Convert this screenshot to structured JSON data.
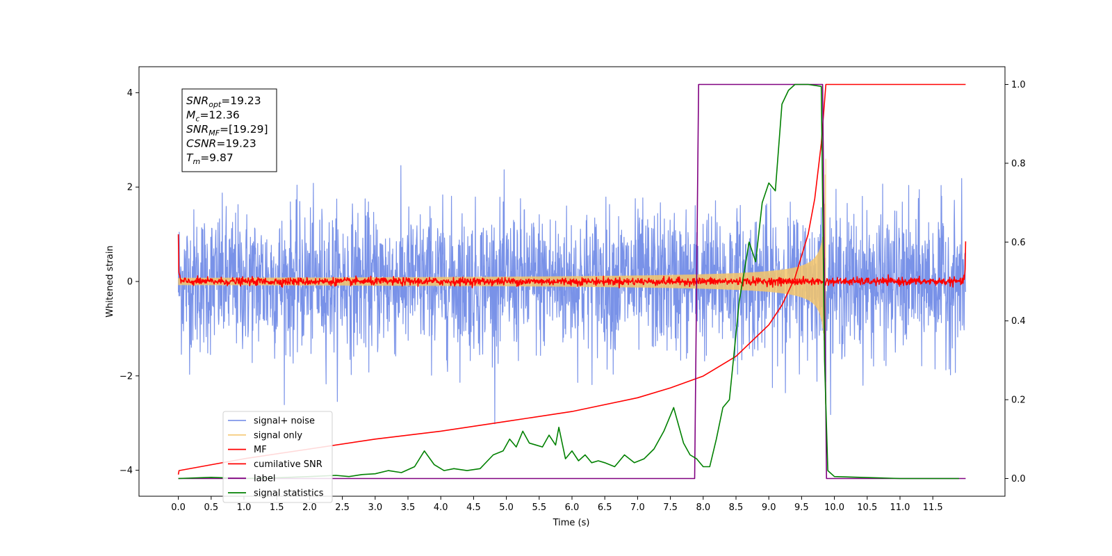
{
  "chart_data": {
    "type": "line",
    "xlabel": "Time (s)",
    "ylabel": "Whitened strain",
    "ylabel_right": "",
    "xlim": [
      -0.6,
      12.6
    ],
    "ylim": [
      -4.55,
      4.55
    ],
    "ylim_right": [
      -0.045,
      1.045
    ],
    "x_ticks": [
      0.0,
      0.5,
      1.0,
      1.5,
      2.0,
      2.5,
      3.0,
      3.5,
      4.0,
      4.5,
      5.0,
      5.5,
      6.0,
      6.5,
      7.0,
      7.5,
      8.0,
      8.5,
      9.0,
      9.5,
      10.0,
      10.5,
      11.0,
      11.5
    ],
    "x_tick_labels": [
      "0.0",
      "0.5",
      "1.0",
      "1.5",
      "2.0",
      "2.5",
      "3.0",
      "3.5",
      "4.0",
      "4.5",
      "5.0",
      "5.5",
      "6.0",
      "6.5",
      "7.0",
      "7.5",
      "8.0",
      "8.5",
      "9.0",
      "9.5",
      "10.0",
      "10.5",
      "11.0",
      "11.5"
    ],
    "y_ticks_left": [
      -4,
      -2,
      0,
      2,
      4
    ],
    "y_tick_labels_left": [
      "−4",
      "−2",
      "0",
      "2",
      "4"
    ],
    "y_ticks_right": [
      0.0,
      0.2,
      0.4,
      0.6,
      0.8,
      1.0
    ],
    "y_tick_labels_right": [
      "0.0",
      "0.2",
      "0.4",
      "0.6",
      "0.8",
      "1.0"
    ],
    "grid": false,
    "legend_position": "lower-left",
    "series": [
      {
        "name": "signal+ noise",
        "color": "#6a86e6",
        "axis": "left",
        "style": "noise",
        "amplitude_std": 0.75,
        "x_start": 0.0,
        "x_end": 12.0
      },
      {
        "name": "signal only",
        "color": "#f5c56a",
        "axis": "left",
        "style": "chirp",
        "x_start": 0.0,
        "x_end": 9.87,
        "peak": 2.6
      },
      {
        "name": "MF",
        "color": "#ff0000",
        "axis": "left",
        "style": "matched-filter",
        "x_start": 0.0,
        "x_end": 12.0,
        "std": 0.04
      },
      {
        "name": "cumilative SNR",
        "color": "#ff0000",
        "axis": "right",
        "x": [
          0.0,
          0.01,
          1.0,
          2.0,
          3.0,
          4.0,
          5.0,
          6.0,
          7.0,
          7.5,
          8.0,
          8.5,
          9.0,
          9.2,
          9.4,
          9.6,
          9.7,
          9.8,
          9.87,
          12.0
        ],
        "y": [
          0.01,
          0.02,
          0.05,
          0.075,
          0.1,
          0.12,
          0.145,
          0.17,
          0.205,
          0.23,
          0.26,
          0.31,
          0.39,
          0.44,
          0.51,
          0.62,
          0.71,
          0.85,
          1.0,
          1.0
        ]
      },
      {
        "name": "label",
        "color": "#800080",
        "axis": "right",
        "x": [
          0.0,
          7.87,
          7.93,
          9.82,
          9.88,
          12.0
        ],
        "y": [
          0.0,
          0.0,
          1.0,
          1.0,
          0.0,
          0.0
        ]
      },
      {
        "name": "signal statistics",
        "color": "#008000",
        "axis": "right",
        "x": [
          0.0,
          0.5,
          1.0,
          1.5,
          2.0,
          2.4,
          2.6,
          2.8,
          3.0,
          3.2,
          3.4,
          3.6,
          3.75,
          3.9,
          4.05,
          4.2,
          4.4,
          4.6,
          4.8,
          4.95,
          5.05,
          5.15,
          5.25,
          5.35,
          5.45,
          5.55,
          5.65,
          5.75,
          5.8,
          5.9,
          6.0,
          6.1,
          6.2,
          6.3,
          6.4,
          6.5,
          6.65,
          6.8,
          6.95,
          7.1,
          7.25,
          7.4,
          7.55,
          7.7,
          7.8,
          7.9,
          8.0,
          8.1,
          8.2,
          8.3,
          8.4,
          8.55,
          8.7,
          8.8,
          8.9,
          9.0,
          9.1,
          9.2,
          9.3,
          9.4,
          9.6,
          9.8,
          9.85,
          9.9,
          10.0,
          11.0,
          11.9
        ],
        "y": [
          0.0,
          0.003,
          0.0,
          0.002,
          0.005,
          0.008,
          0.005,
          0.01,
          0.012,
          0.02,
          0.015,
          0.03,
          0.07,
          0.035,
          0.02,
          0.025,
          0.02,
          0.025,
          0.06,
          0.07,
          0.1,
          0.08,
          0.12,
          0.09,
          0.085,
          0.08,
          0.11,
          0.085,
          0.13,
          0.05,
          0.07,
          0.045,
          0.06,
          0.04,
          0.045,
          0.04,
          0.03,
          0.06,
          0.04,
          0.05,
          0.075,
          0.12,
          0.18,
          0.09,
          0.06,
          0.05,
          0.03,
          0.03,
          0.1,
          0.18,
          0.2,
          0.45,
          0.6,
          0.55,
          0.7,
          0.75,
          0.73,
          0.95,
          0.985,
          1.0,
          1.0,
          0.995,
          0.3,
          0.02,
          0.005,
          0.0,
          0.0
        ]
      }
    ]
  },
  "info_box": {
    "lines": [
      {
        "label": "SNR",
        "sub": "opt",
        "value": "=19.23"
      },
      {
        "label": "M",
        "sub": "c",
        "value": "=12.36"
      },
      {
        "label": "SNR",
        "sub": "MF",
        "value": "=[19.29]"
      },
      {
        "label": "CSNR",
        "sub": "",
        "value": "=19.23"
      },
      {
        "label": "T",
        "sub": "m",
        "value": "=9.87"
      }
    ]
  }
}
